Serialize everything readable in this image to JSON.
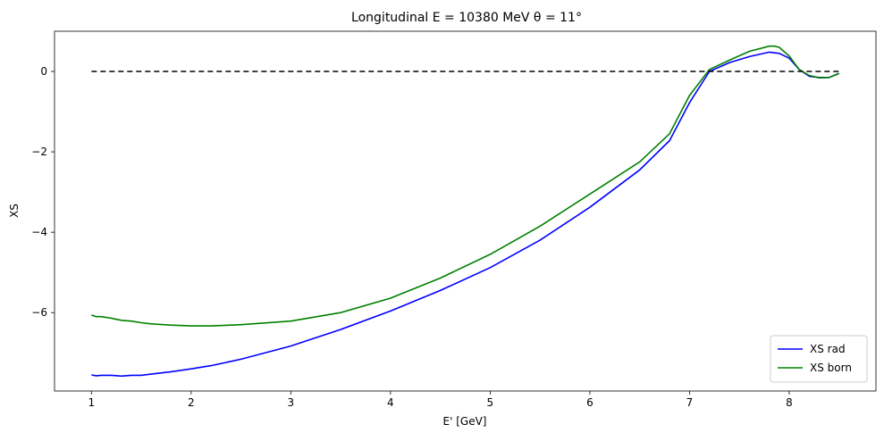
{
  "chart_data": {
    "type": "line",
    "title": "Longitudinal E = 10380 MeV θ = 11°",
    "xlabel": "E' [GeV]",
    "ylabel": "XS",
    "xlim": [
      0.63,
      8.87
    ],
    "ylim": [
      -7.95,
      1.0
    ],
    "xticks": [
      "1",
      "2",
      "3",
      "4",
      "5",
      "6",
      "7",
      "8"
    ],
    "yticks": [
      "0",
      "−2",
      "−4",
      "−6"
    ],
    "grid": false,
    "legend_position": "lower right",
    "series": [
      {
        "name": "XS rad",
        "color": "#0000ff",
        "style": "solid",
        "x": [
          1.0,
          1.05,
          1.1,
          1.2,
          1.3,
          1.4,
          1.5,
          1.6,
          1.8,
          2.0,
          2.2,
          2.5,
          3.0,
          3.5,
          4.0,
          4.5,
          5.0,
          5.5,
          6.0,
          6.5,
          6.8,
          7.0,
          7.2,
          7.4,
          7.6,
          7.8,
          7.9,
          8.0,
          8.1,
          8.2,
          8.3,
          8.4,
          8.5
        ],
        "y": [
          -7.55,
          -7.57,
          -7.56,
          -7.56,
          -7.58,
          -7.56,
          -7.56,
          -7.53,
          -7.47,
          -7.4,
          -7.32,
          -7.16,
          -6.83,
          -6.42,
          -5.96,
          -5.45,
          -4.88,
          -4.2,
          -3.38,
          -2.45,
          -1.72,
          -0.78,
          0.0,
          0.22,
          0.37,
          0.48,
          0.45,
          0.33,
          0.05,
          -0.12,
          -0.15,
          -0.15,
          -0.05
        ]
      },
      {
        "name": "XS born",
        "color": "#008000",
        "style": "solid",
        "x": [
          1.0,
          1.05,
          1.1,
          1.2,
          1.3,
          1.4,
          1.5,
          1.6,
          1.8,
          2.0,
          2.2,
          2.5,
          3.0,
          3.5,
          4.0,
          4.5,
          5.0,
          5.5,
          6.0,
          6.5,
          6.8,
          7.0,
          7.2,
          7.4,
          7.6,
          7.8,
          7.85,
          7.9,
          8.0,
          8.1,
          8.2,
          8.3,
          8.4,
          8.5
        ],
        "y": [
          -6.06,
          -6.1,
          -6.1,
          -6.14,
          -6.19,
          -6.21,
          -6.25,
          -6.28,
          -6.31,
          -6.33,
          -6.33,
          -6.3,
          -6.21,
          -6.0,
          -5.64,
          -5.14,
          -4.55,
          -3.85,
          -3.05,
          -2.25,
          -1.55,
          -0.6,
          0.05,
          0.28,
          0.5,
          0.63,
          0.63,
          0.6,
          0.38,
          0.05,
          -0.1,
          -0.16,
          -0.15,
          -0.05
        ]
      },
      {
        "name": "",
        "color": "#000000",
        "style": "dashed",
        "x": [
          1.0,
          8.5
        ],
        "y": [
          0,
          0
        ]
      }
    ]
  }
}
